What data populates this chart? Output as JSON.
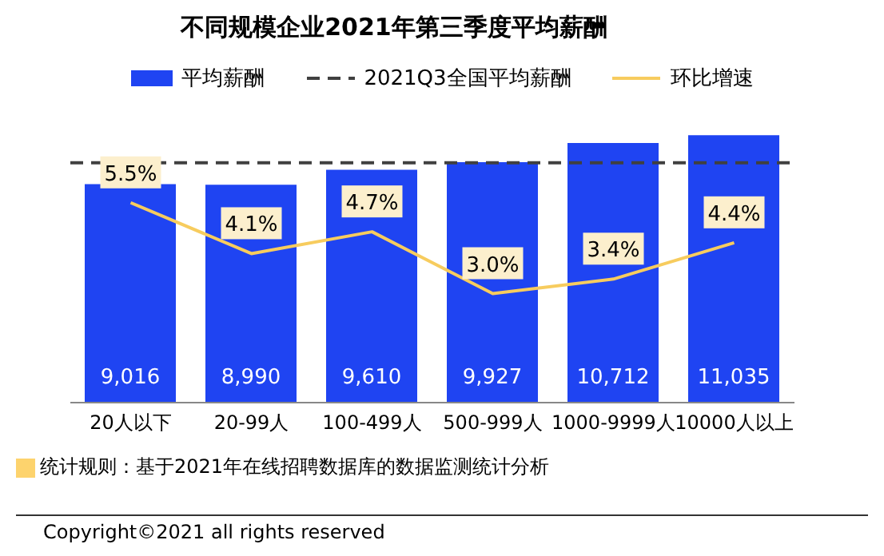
{
  "chart_data": {
    "type": "bar",
    "title": "不同规模企业2021年第三季度平均薪酬",
    "categories": [
      "20人以下",
      "20-99人",
      "100-499人",
      "500-999人",
      "1000-9999人",
      "10000人以上"
    ],
    "series": [
      {
        "name": "平均薪酬",
        "color": "#1f44f2",
        "values": [
          9016,
          8990,
          9610,
          9927,
          10712,
          11035
        ],
        "value_labels": [
          "9,016",
          "8,990",
          "9,610",
          "9,927",
          "10,712",
          "11,035"
        ]
      },
      {
        "name": "环比增速",
        "type": "line",
        "axis": "y2",
        "color": "#f7cc5e",
        "values": [
          5.5,
          4.1,
          4.7,
          3.0,
          3.4,
          4.4
        ],
        "value_labels": [
          "5.5%",
          "4.1%",
          "4.7%",
          "3.0%",
          "3.4%",
          "4.4%"
        ]
      }
    ],
    "ref_lines": [
      {
        "axis": "y",
        "value": 9900,
        "label": "2021Q3全国平均薪酬",
        "color": "#404040",
        "line_style": "dashed"
      }
    ],
    "tick_labels": "x",
    "grid": false,
    "legend": "top",
    "marker": "none",
    "annotations": [
      "统计规则：基于2021年在线招聘数据库的数据监测统计分析",
      "Copyright©2021 all rights reserved"
    ]
  }
}
